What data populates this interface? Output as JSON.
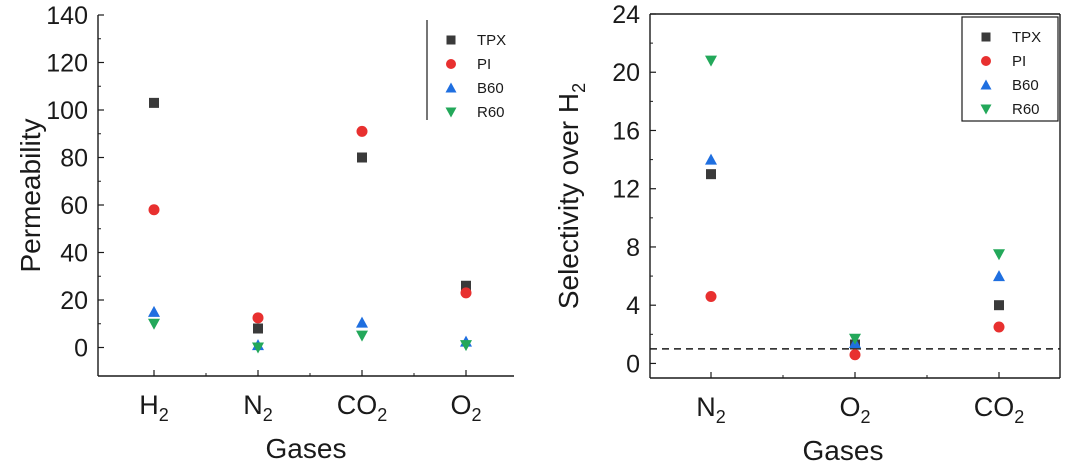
{
  "chart_data": [
    {
      "type": "scatter",
      "title": "",
      "xlabel": "Gases",
      "ylabel": "Permeability",
      "categories": [
        "H2",
        "N2",
        "CO2",
        "O2"
      ],
      "category_display": [
        {
          "base": "H",
          "sub": "2"
        },
        {
          "base": "N",
          "sub": "2"
        },
        {
          "base": "CO",
          "sub": "2"
        },
        {
          "base": "O",
          "sub": "2"
        }
      ],
      "ylim": [
        -12,
        140
      ],
      "yticks": [
        0,
        20,
        40,
        60,
        80,
        100,
        120,
        140
      ],
      "legend_placement": "top-right",
      "grid": false,
      "series": [
        {
          "name": "TPX",
          "color": "#3a3a3a",
          "marker": "square",
          "values": [
            103,
            8,
            80,
            26
          ]
        },
        {
          "name": "PI",
          "color": "#e8302f",
          "marker": "circle",
          "values": [
            58,
            12.5,
            91,
            23
          ]
        },
        {
          "name": "B60",
          "color": "#1f6fe0",
          "marker": "triangle-up",
          "values": [
            15,
            1,
            10.5,
            2.5
          ]
        },
        {
          "name": "R60",
          "color": "#23a85a",
          "marker": "triangle-down",
          "values": [
            10,
            0,
            5,
            1
          ]
        }
      ]
    },
    {
      "type": "scatter",
      "title": "",
      "xlabel": "Gases",
      "ylabel": {
        "base": "Selectivity over H",
        "sub": "2"
      },
      "categories": [
        "N2",
        "O2",
        "CO2"
      ],
      "category_display": [
        {
          "base": "N",
          "sub": "2"
        },
        {
          "base": "O",
          "sub": "2"
        },
        {
          "base": "CO",
          "sub": "2"
        }
      ],
      "ylim": [
        -1,
        24
      ],
      "yticks": [
        0,
        4,
        8,
        12,
        16,
        20,
        24
      ],
      "reference_line": 1,
      "legend_placement": "top-right",
      "grid": false,
      "series": [
        {
          "name": "TPX",
          "color": "#3a3a3a",
          "marker": "square",
          "values": [
            13,
            1.3,
            4
          ]
        },
        {
          "name": "PI",
          "color": "#e8302f",
          "marker": "circle",
          "values": [
            4.6,
            0.6,
            2.5
          ]
        },
        {
          "name": "B60",
          "color": "#1f6fe0",
          "marker": "triangle-up",
          "values": [
            14,
            1.4,
            6
          ]
        },
        {
          "name": "R60",
          "color": "#23a85a",
          "marker": "triangle-down",
          "values": [
            20.8,
            1.7,
            7.5
          ]
        }
      ]
    }
  ]
}
